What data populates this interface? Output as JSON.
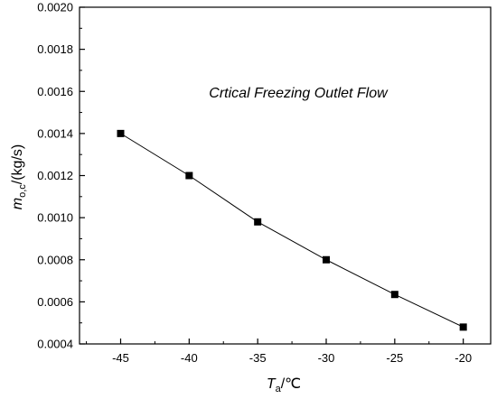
{
  "chart_data": {
    "type": "line",
    "title": "Crtical Freezing Outlet Flow",
    "xlabel": {
      "main": "T",
      "sub": "a",
      "unit": "/℃"
    },
    "ylabel": {
      "main": "m",
      "sub": "o,c",
      "unit": "/(kg/s)"
    },
    "xlim": [
      -48,
      -18
    ],
    "ylim": [
      0.0004,
      0.002
    ],
    "xticks": [
      -45,
      -40,
      -35,
      -30,
      -25,
      -20
    ],
    "yticks": [
      0.0004,
      0.0006,
      0.0008,
      0.001,
      0.0012,
      0.0014,
      0.0016,
      0.0018,
      0.002
    ],
    "xtick_labels": [
      "-45",
      "-40",
      "-35",
      "-30",
      "-25",
      "-20"
    ],
    "ytick_labels": [
      "0.0004",
      "0.0006",
      "0.0008",
      "0.0010",
      "0.0012",
      "0.0014",
      "0.0016",
      "0.0018",
      "0.0020"
    ],
    "series": [
      {
        "x": [
          -45,
          -40,
          -35,
          -30,
          -25,
          -20
        ],
        "values": [
          0.0014,
          0.0012,
          0.00098,
          0.0008,
          0.000635,
          0.00048
        ],
        "marker": "square",
        "color": "#000000"
      }
    ],
    "grid": false,
    "legend": false
  }
}
